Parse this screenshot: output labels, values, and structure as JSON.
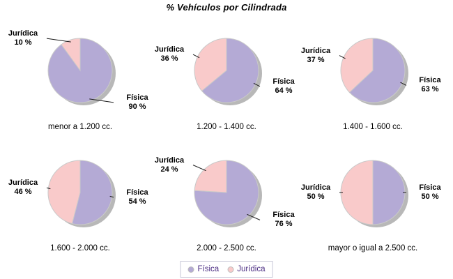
{
  "chart_data": {
    "type": "pie",
    "title": "% Vehículos por Cilindrada",
    "legend": {
      "position": "bottom",
      "items": [
        {
          "label": "Física",
          "color": "#B4AAD5"
        },
        {
          "label": "Jurídica",
          "color": "#F9CACA"
        }
      ]
    },
    "colors": {
      "fisica_slice": "#B4AAD5",
      "juridica_slice": "#F9CACA",
      "shadow": "#A6A6A6",
      "slice_outline": "#C9C9C9",
      "leader_line": "#1A1A1A",
      "legend_text": "#4B2D83",
      "legend_border": "#C8C8D8",
      "label_text": "#000000"
    },
    "pies": [
      {
        "category": "menor a 1.200 cc.",
        "slices": [
          {
            "label": "Física",
            "value": 90,
            "pct_label": "90 %"
          },
          {
            "label": "Jurídica",
            "value": 10,
            "pct_label": "10 %"
          }
        ]
      },
      {
        "category": "1.200 - 1.400 cc.",
        "slices": [
          {
            "label": "Física",
            "value": 64,
            "pct_label": "64 %"
          },
          {
            "label": "Jurídica",
            "value": 36,
            "pct_label": "36 %"
          }
        ]
      },
      {
        "category": "1.400 - 1.600 cc.",
        "slices": [
          {
            "label": "Física",
            "value": 63,
            "pct_label": "63 %"
          },
          {
            "label": "Jurídica",
            "value": 37,
            "pct_label": "37 %"
          }
        ]
      },
      {
        "category": "1.600 - 2.000 cc.",
        "slices": [
          {
            "label": "Física",
            "value": 54,
            "pct_label": "54 %"
          },
          {
            "label": "Jurídica",
            "value": 46,
            "pct_label": "46 %"
          }
        ]
      },
      {
        "category": "2.000 - 2.500 cc.",
        "slices": [
          {
            "label": "Física",
            "value": 76,
            "pct_label": "76 %"
          },
          {
            "label": "Jurídica",
            "value": 24,
            "pct_label": "24 %"
          }
        ]
      },
      {
        "category": "mayor o igual a 2.500 cc.",
        "slices": [
          {
            "label": "Física",
            "value": 50,
            "pct_label": "50 %"
          },
          {
            "label": "Jurídica",
            "value": 50,
            "pct_label": "50 %"
          }
        ]
      }
    ]
  }
}
